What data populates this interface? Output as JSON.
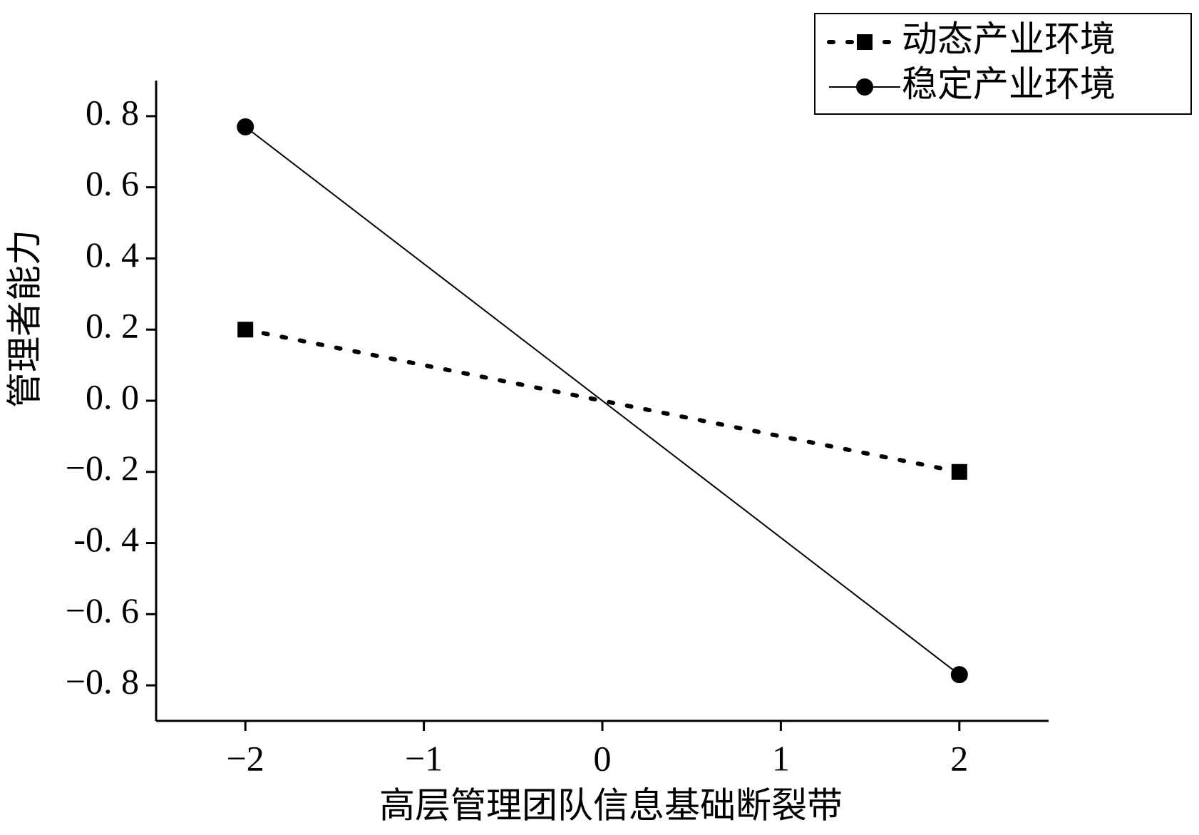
{
  "chart_data": {
    "type": "line",
    "xlabel": "高层管理团队信息基础断裂带",
    "ylabel": "管理者能力",
    "x": [
      -2,
      2
    ],
    "series": [
      {
        "name": "动态产业环境",
        "color": "#000000",
        "linestyle": "dotted",
        "marker": "square",
        "values": [
          0.2,
          -0.2
        ]
      },
      {
        "name": "稳定产业环境",
        "color": "#000000",
        "linestyle": "solid",
        "marker": "circle",
        "values": [
          0.77,
          -0.77
        ]
      }
    ],
    "xlim": [
      -2.5,
      2.5
    ],
    "xticks": [
      {
        "value": -2,
        "label": "−2"
      },
      {
        "value": -1,
        "label": "−1"
      },
      0,
      1,
      2
    ],
    "ylim": [
      -0.9,
      0.9
    ],
    "yticks": [
      {
        "value": -0.8,
        "label": "−0. 8"
      },
      {
        "value": -0.6,
        "label": "−0. 6"
      },
      {
        "value": -0.4,
        "label": "-0. 4"
      },
      {
        "value": -0.2,
        "label": "−0. 2"
      },
      {
        "value": 0,
        "label": "0. 0"
      },
      {
        "value": 0.2,
        "label": "0. 2"
      },
      {
        "value": 0.4,
        "label": "0. 4"
      },
      {
        "value": 0.6,
        "label": "0. 6"
      },
      {
        "value": 0.8,
        "label": "0. 8"
      }
    ],
    "legend": "upper right"
  }
}
